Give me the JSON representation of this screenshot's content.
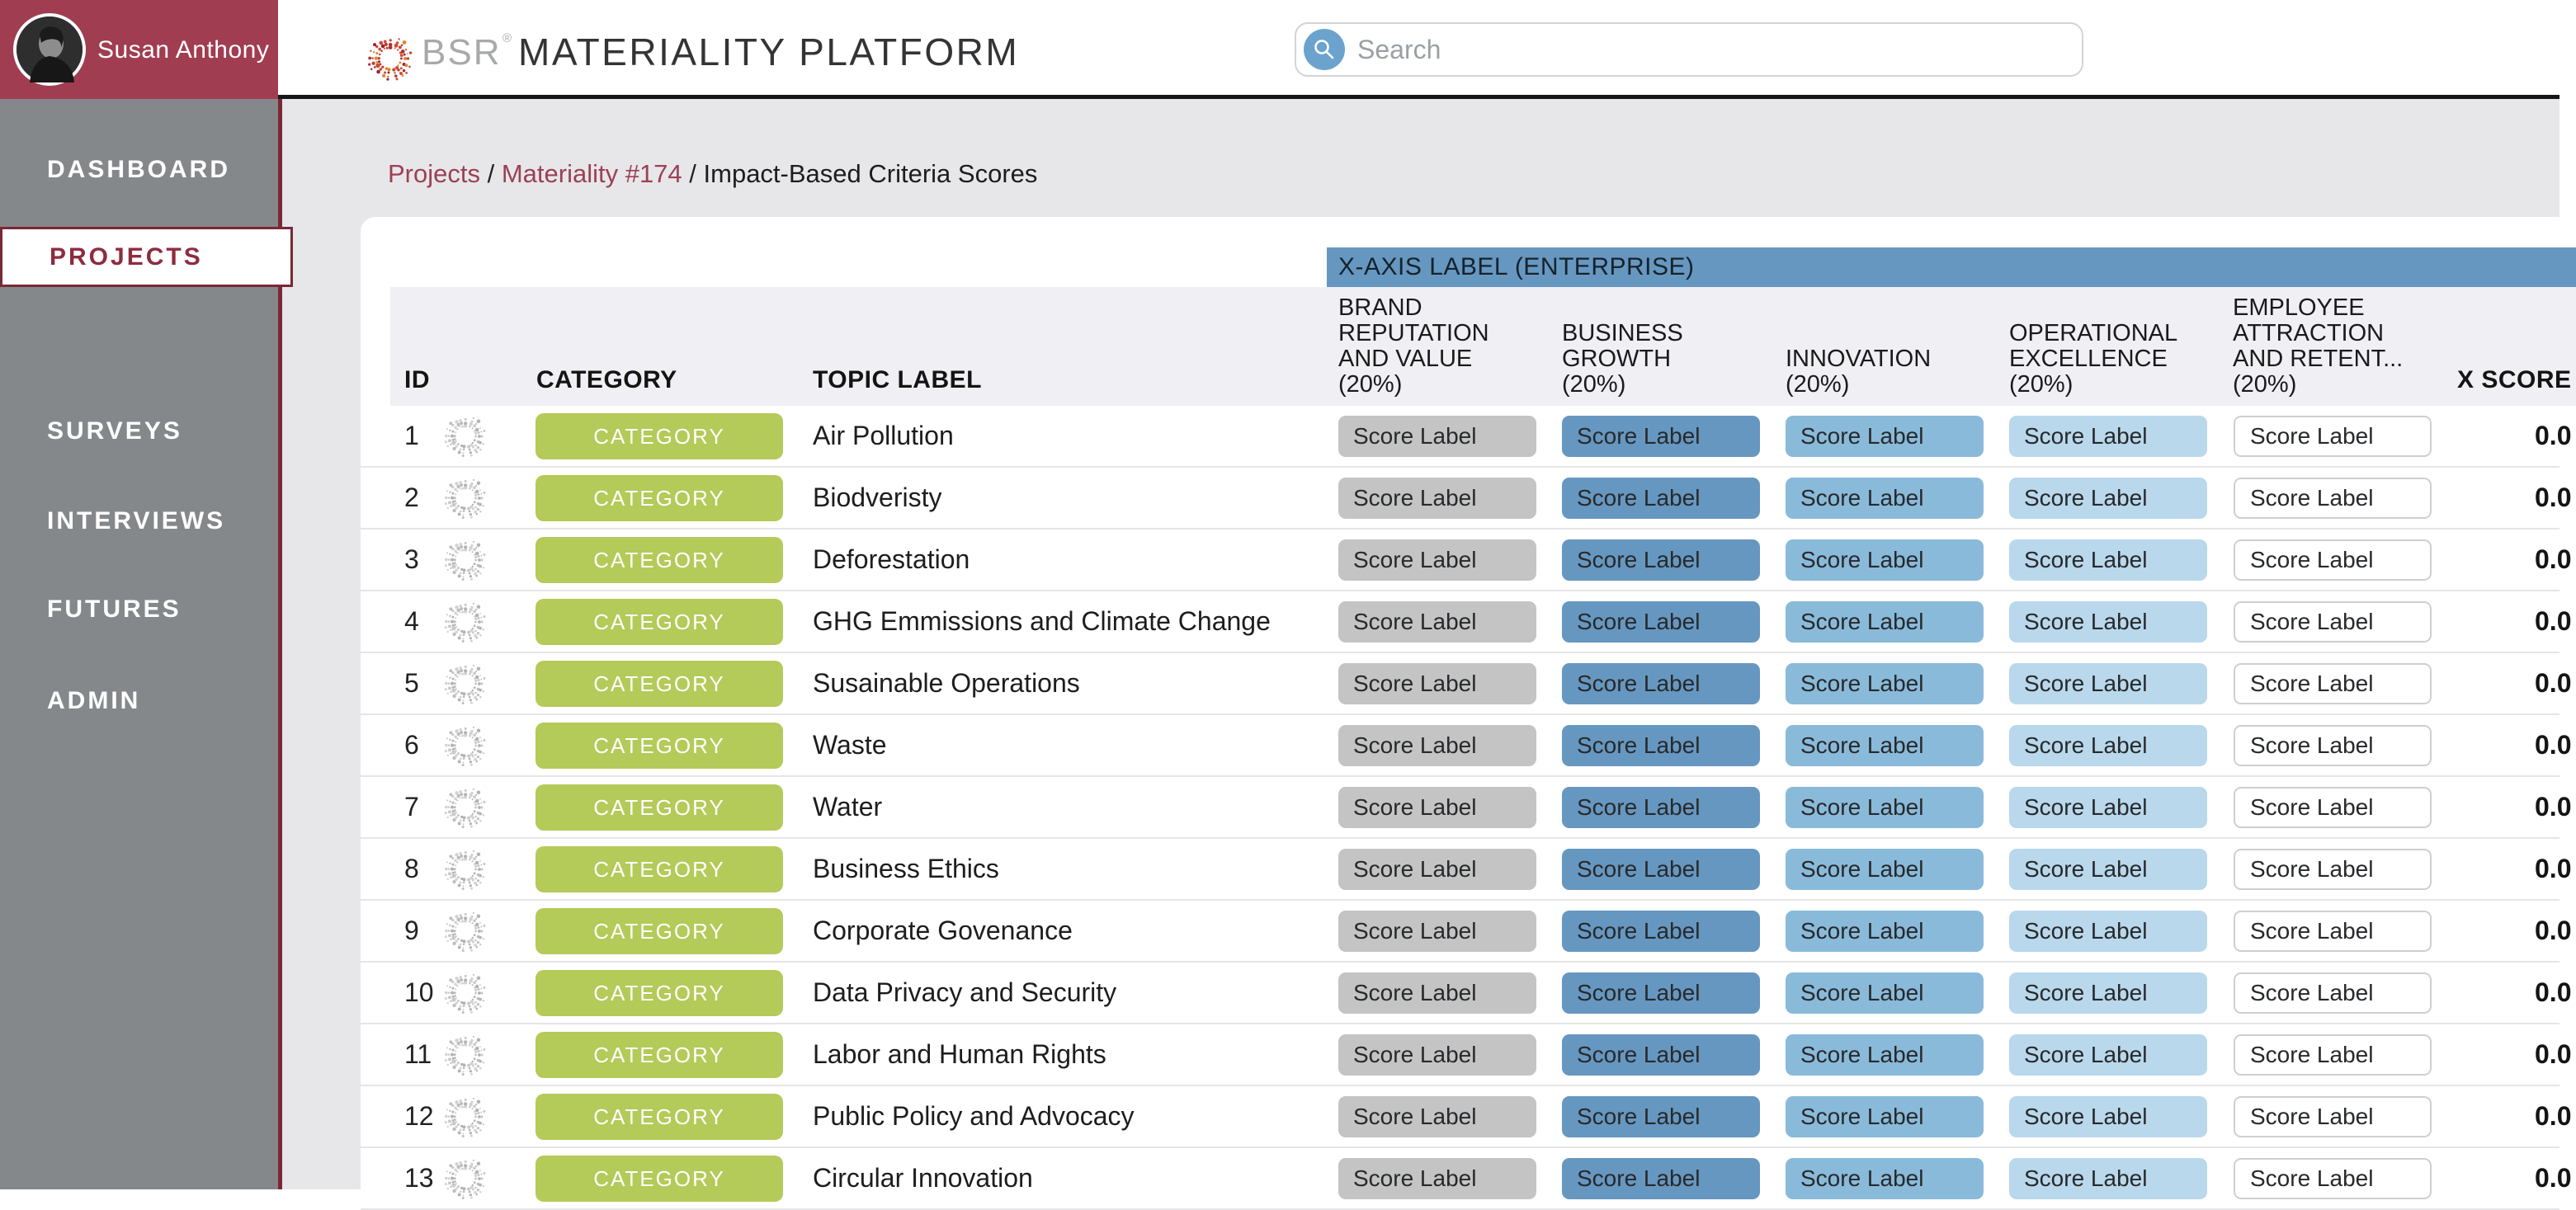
{
  "user": {
    "name": "Susan Anthony"
  },
  "brand": {
    "bsr": "BSR",
    "registered": "®",
    "platform": "MATERIALITY PLATFORM"
  },
  "search": {
    "placeholder": "Search"
  },
  "sidebar": {
    "items": [
      {
        "label": "DASHBOARD",
        "active": false
      },
      {
        "label": "PROJECTS",
        "active": true
      },
      {
        "label": "SURVEYS",
        "active": false
      },
      {
        "label": "INTERVIEWS",
        "active": false
      },
      {
        "label": "FUTURES",
        "active": false
      },
      {
        "label": "ADMIN",
        "active": false
      }
    ]
  },
  "breadcrumb": {
    "separator": " / ",
    "parts": [
      {
        "text": "Projects",
        "link": true
      },
      {
        "text": "Materiality #174",
        "link": true
      },
      {
        "text": "Impact-Based Criteria Scores",
        "link": false
      }
    ]
  },
  "table": {
    "axis_banner": "X-AXIS LABEL (ENTERPRISE)",
    "columns": {
      "id": "ID",
      "category": "CATEGORY",
      "topic": "TOPIC LABEL",
      "x_score": "X SCORE"
    },
    "score_columns": [
      [
        "BRAND",
        "REPUTATION",
        "AND VALUE",
        "(20%)"
      ],
      [
        "BUSINESS",
        "GROWTH",
        "(20%)"
      ],
      [
        "INNOVATION",
        "(20%)"
      ],
      [
        "OPERATIONAL",
        "EXCELLENCE",
        "(20%)"
      ],
      [
        "EMPLOYEE",
        "ATTRACTION",
        "AND RETENT...",
        "(20%)"
      ]
    ],
    "rows": [
      {
        "id": "1",
        "category": "CATEGORY",
        "topic": "Air Pollution",
        "scores": [
          "Score Label",
          "Score Label",
          "Score Label",
          "Score Label",
          "Score Label"
        ],
        "x_score": "0.0"
      },
      {
        "id": "2",
        "category": "CATEGORY",
        "topic": "Biodveristy",
        "scores": [
          "Score Label",
          "Score Label",
          "Score Label",
          "Score Label",
          "Score Label"
        ],
        "x_score": "0.0"
      },
      {
        "id": "3",
        "category": "CATEGORY",
        "topic": "Deforestation",
        "scores": [
          "Score Label",
          "Score Label",
          "Score Label",
          "Score Label",
          "Score Label"
        ],
        "x_score": "0.0"
      },
      {
        "id": "4",
        "category": "CATEGORY",
        "topic": "GHG Emmissions and Climate Change",
        "scores": [
          "Score Label",
          "Score Label",
          "Score Label",
          "Score Label",
          "Score Label"
        ],
        "x_score": "0.0"
      },
      {
        "id": "5",
        "category": "CATEGORY",
        "topic": "Susainable Operations",
        "scores": [
          "Score Label",
          "Score Label",
          "Score Label",
          "Score Label",
          "Score Label"
        ],
        "x_score": "0.0"
      },
      {
        "id": "6",
        "category": "CATEGORY",
        "topic": "Waste",
        "scores": [
          "Score Label",
          "Score Label",
          "Score Label",
          "Score Label",
          "Score Label"
        ],
        "x_score": "0.0"
      },
      {
        "id": "7",
        "category": "CATEGORY",
        "topic": "Water",
        "scores": [
          "Score Label",
          "Score Label",
          "Score Label",
          "Score Label",
          "Score Label"
        ],
        "x_score": "0.0"
      },
      {
        "id": "8",
        "category": "CATEGORY",
        "topic": "Business Ethics",
        "scores": [
          "Score Label",
          "Score Label",
          "Score Label",
          "Score Label",
          "Score Label"
        ],
        "x_score": "0.0"
      },
      {
        "id": "9",
        "category": "CATEGORY",
        "topic": "Corporate Govenance",
        "scores": [
          "Score Label",
          "Score Label",
          "Score Label",
          "Score Label",
          "Score Label"
        ],
        "x_score": "0.0"
      },
      {
        "id": "10",
        "category": "CATEGORY",
        "topic": "Data Privacy and Security",
        "scores": [
          "Score Label",
          "Score Label",
          "Score Label",
          "Score Label",
          "Score Label"
        ],
        "x_score": "0.0"
      },
      {
        "id": "11",
        "category": "CATEGORY",
        "topic": "Labor and Human Rights",
        "scores": [
          "Score Label",
          "Score Label",
          "Score Label",
          "Score Label",
          "Score Label"
        ],
        "x_score": "0.0"
      },
      {
        "id": "12",
        "category": "CATEGORY",
        "topic": "Public Policy and Advocacy",
        "scores": [
          "Score Label",
          "Score Label",
          "Score Label",
          "Score Label",
          "Score Label"
        ],
        "x_score": "0.0"
      },
      {
        "id": "13",
        "category": "CATEGORY",
        "topic": "Circular Innovation",
        "scores": [
          "Score Label",
          "Score Label",
          "Score Label",
          "Score Label",
          "Score Label"
        ],
        "x_score": "0.0"
      }
    ]
  },
  "icons": {
    "search": "magnifier-in-blue-circle",
    "logo_mark": "bsr-dot-sunburst",
    "row_spinner": "gray-dot-sunburst"
  },
  "colors": {
    "maroon": "#a03d51",
    "maroon_dark": "#7b2836",
    "sidebar_gray": "#85888b",
    "banner_blue": "#6697c0",
    "score_gray": "#c4c4c4",
    "score_blue_dark": "#6697c0",
    "score_blue_mid": "#89bada",
    "score_blue_light": "#b9d8ec",
    "badge_green": "#b4ca59"
  }
}
